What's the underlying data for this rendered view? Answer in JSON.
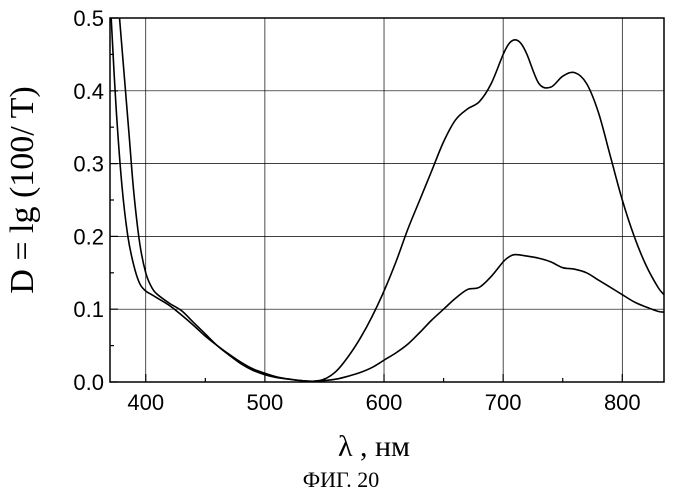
{
  "chart_data": {
    "type": "line",
    "xlabel": "λ , нм",
    "ylabel": "D = lg (100/ T)",
    "xlim": [
      370,
      835
    ],
    "ylim": [
      0.0,
      0.5
    ],
    "x_ticks": [
      400,
      500,
      600,
      700,
      800
    ],
    "x_tick_labels": [
      "400",
      "500",
      "600",
      "700",
      "800"
    ],
    "y_ticks": [
      0.0,
      0.1,
      0.2,
      0.3,
      0.4,
      0.5
    ],
    "y_tick_labels": [
      "0.0",
      "0.1",
      "0.2",
      "0.3",
      "0.4",
      "0.5"
    ],
    "grid": true,
    "series": [
      {
        "x": [
          371,
          375,
          380,
          385,
          390,
          395,
          400,
          405,
          410,
          420,
          430,
          440,
          450,
          460,
          470,
          480,
          490,
          500,
          510,
          520,
          530,
          540,
          550,
          560,
          570,
          580,
          590,
          600,
          610,
          620,
          630,
          640,
          650,
          660,
          670,
          680,
          690,
          700,
          705,
          710,
          715,
          720,
          730,
          740,
          750,
          760,
          770,
          780,
          790,
          800,
          810,
          820,
          830,
          835
        ],
        "y": [
          0.5,
          0.38,
          0.27,
          0.2,
          0.16,
          0.135,
          0.125,
          0.12,
          0.115,
          0.105,
          0.092,
          0.078,
          0.063,
          0.05,
          0.038,
          0.027,
          0.018,
          0.012,
          0.007,
          0.004,
          0.002,
          0.001,
          0.004,
          0.015,
          0.035,
          0.06,
          0.09,
          0.125,
          0.165,
          0.21,
          0.25,
          0.29,
          0.33,
          0.36,
          0.375,
          0.385,
          0.41,
          0.45,
          0.465,
          0.47,
          0.465,
          0.45,
          0.41,
          0.405,
          0.42,
          0.425,
          0.41,
          0.37,
          0.31,
          0.25,
          0.2,
          0.16,
          0.13,
          0.12
        ]
      },
      {
        "x": [
          378,
          382,
          386,
          390,
          395,
          400,
          405,
          410,
          420,
          430,
          440,
          450,
          460,
          470,
          480,
          490,
          500,
          510,
          520,
          530,
          540,
          550,
          560,
          570,
          580,
          590,
          600,
          610,
          620,
          630,
          640,
          650,
          660,
          670,
          680,
          690,
          700,
          705,
          710,
          720,
          730,
          740,
          750,
          760,
          770,
          780,
          790,
          800,
          810,
          820,
          830,
          835
        ],
        "y": [
          0.5,
          0.42,
          0.34,
          0.26,
          0.19,
          0.15,
          0.13,
          0.12,
          0.108,
          0.098,
          0.082,
          0.066,
          0.05,
          0.037,
          0.025,
          0.016,
          0.01,
          0.006,
          0.004,
          0.002,
          0.001,
          0.002,
          0.004,
          0.008,
          0.013,
          0.02,
          0.03,
          0.04,
          0.052,
          0.068,
          0.085,
          0.1,
          0.115,
          0.127,
          0.13,
          0.145,
          0.165,
          0.172,
          0.175,
          0.173,
          0.17,
          0.165,
          0.157,
          0.155,
          0.15,
          0.14,
          0.13,
          0.12,
          0.11,
          0.103,
          0.097,
          0.096
        ]
      }
    ]
  },
  "caption": "ФИГ. 20"
}
